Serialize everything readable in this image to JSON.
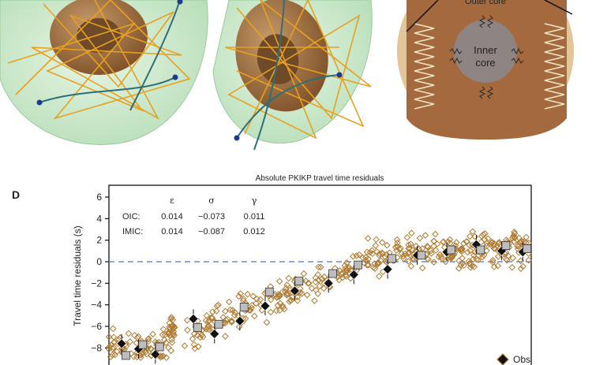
{
  "panels": {
    "inner_core_label_line1": "Inner",
    "inner_core_label_line2": "core",
    "outer_core_label": "Outer core"
  },
  "panel_d": {
    "letter": "D",
    "title": "Absolute PKIKP travel time residuals",
    "ylabel": "Travel time residuals (s)",
    "yticks": [
      "6",
      "4",
      "2",
      "0",
      "−2",
      "−4",
      "−6",
      "−8"
    ],
    "legend_obs": "Obs",
    "table": {
      "headers": [
        "ε",
        "σ",
        "γ"
      ],
      "rows": [
        {
          "label": "OIC:",
          "values": [
            "0.014",
            "−0.073",
            "0.011"
          ]
        },
        {
          "label": "IMIC:",
          "values": [
            "0.014",
            "−0.087",
            "0.012"
          ]
        }
      ]
    }
  },
  "colors": {
    "mantle_green": "#cfe9cf",
    "outer_core_brown": "#a46a3e",
    "inner_core_brown": "#8a5b33",
    "ray_orange": "#e8a020",
    "ray_teal": "#2e6e78",
    "scatter_brown": "#b07a30",
    "obs_black": "#111111",
    "model_gray": "#bdbdbd",
    "zero_line": "#4a78b8"
  },
  "chart_data": {
    "type": "scatter",
    "title": "Absolute PKIKP travel time residuals",
    "xlabel": "",
    "ylabel": "Travel time residuals (s)",
    "ylim": [
      -9,
      6.6
    ],
    "xlim": [
      0,
      100
    ],
    "grid": false,
    "legend": "bottom-right",
    "series": [
      {
        "name": "Obs",
        "marker": "diamond-filled",
        "x": [
          3,
          7,
          11,
          20,
          25,
          31,
          37,
          44,
          52,
          58,
          66,
          73,
          80,
          87,
          93,
          98
        ],
        "y": [
          -7.6,
          -8.1,
          -8.6,
          -5.3,
          -6.7,
          -5.5,
          -4.1,
          -2.7,
          -2.0,
          -1.2,
          -0.7,
          0.6,
          0.9,
          1.6,
          1.0,
          0.9
        ]
      },
      {
        "name": "",
        "marker": "square-gray",
        "x": [
          4,
          8,
          12,
          21,
          26,
          32,
          38,
          45,
          53,
          59,
          67,
          74,
          81,
          88,
          94,
          99
        ],
        "y": [
          -8.7,
          -7.7,
          -7.9,
          -6.1,
          -5.8,
          -4.2,
          -2.8,
          -1.8,
          -1.1,
          -0.3,
          0.3,
          0.6,
          1.1,
          1.1,
          1.5,
          1.2
        ]
      }
    ]
  }
}
